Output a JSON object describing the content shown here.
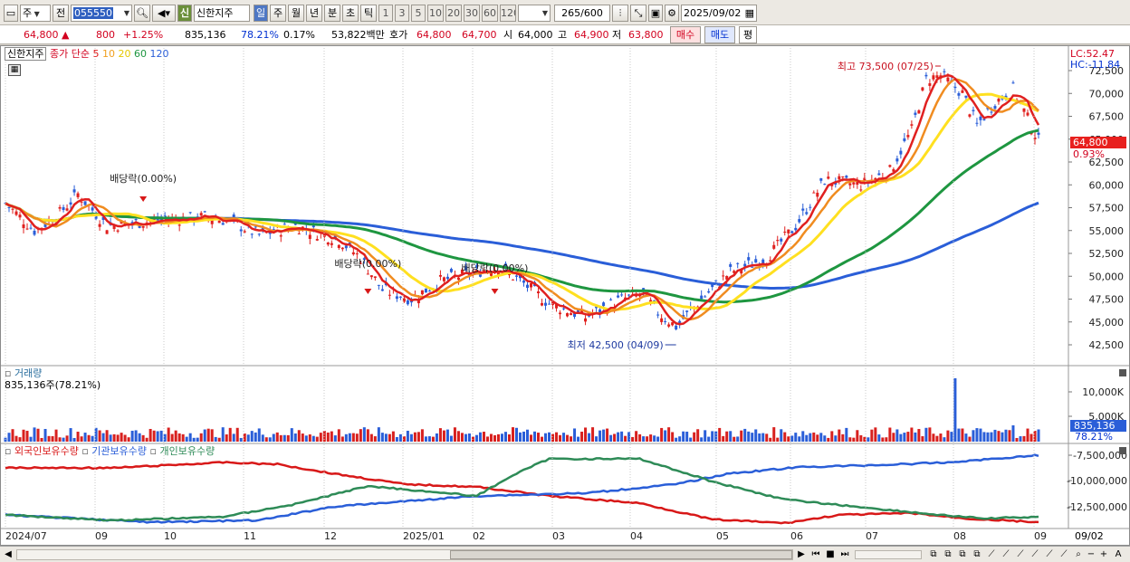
{
  "toolbar": {
    "market": "주",
    "prefix": "전",
    "code": "055550",
    "type_badge": "신",
    "stock_name": "신한지주",
    "periods": [
      "일",
      "주",
      "월",
      "년",
      "분",
      "초",
      "틱"
    ],
    "active_period": "일",
    "intervals": [
      "1",
      "3",
      "5",
      "10",
      "20",
      "30",
      "60",
      "120"
    ],
    "count_current": "265",
    "count_max": "/600",
    "date": "2025/09/02"
  },
  "price_info": {
    "price": "64,800",
    "change": "800",
    "change_pct": "+1.25%",
    "volume": "835,136",
    "volume_ratio": "78.21%",
    "turnover_pct": "0.17%",
    "amount": "53,822백만",
    "quote_label": "호가",
    "ask": "64,800",
    "bid": "64,700",
    "open_label": "시",
    "open": "64,000",
    "high_label": "고",
    "high": "64,900",
    "low_label": "저",
    "low": "63,800",
    "buy_button": "매수",
    "sell_button": "매도",
    "eval_button": "평"
  },
  "price_chart": {
    "legend_name": "신한지주",
    "legend_prefix": "종가 단순",
    "ma_periods": [
      "5",
      "10",
      "20",
      "60",
      "120"
    ],
    "ma_colors": [
      "#e02020",
      "#f08c20",
      "#ffe020",
      "#1e9640",
      "#2a5ed8"
    ],
    "lc_label": "LC:52.47",
    "hc_label": "HC:-11.84",
    "y_ticks": [
      "72,500",
      "70,000",
      "67,500",
      "65,000",
      "62,500",
      "60,000",
      "57,500",
      "55,000",
      "52,500",
      "50,000",
      "47,500",
      "45,000",
      "42,500"
    ],
    "current_price_tag": "64,800",
    "current_pct_tag": "0.93%",
    "annotations": {
      "high": "최고 73,500 (07/25)",
      "low": "최저 42,500 (04/09)",
      "dividend": "배당락(0.00%)"
    }
  },
  "volume_chart": {
    "title": "거래량",
    "value_label": "835,136주(78.21%)",
    "y_ticks": [
      "10,000K",
      "5,000K"
    ],
    "tag_value": "835,136",
    "tag_pct": "78.21%"
  },
  "holdings_chart": {
    "legend": [
      "외국인보유수량",
      "기관보유수량",
      "개인보유수량"
    ],
    "legend_colors": [
      "#d81818",
      "#2a5ed8",
      "#2e8b57"
    ],
    "y_ticks": [
      "-7,500,000",
      "-10,000,000",
      "-12,500,000"
    ]
  },
  "x_axis": {
    "labels": [
      "2024/07",
      "09",
      "10",
      "11",
      "12",
      "2025/01",
      "02",
      "03",
      "04",
      "05",
      "06",
      "07",
      "08",
      "09"
    ],
    "last_date": "09/02"
  },
  "scrollbar": {
    "left_icon": "◀",
    "right_icon": "▶",
    "zoom_minus": "−",
    "zoom_plus": "+",
    "auto_label": "A"
  }
}
